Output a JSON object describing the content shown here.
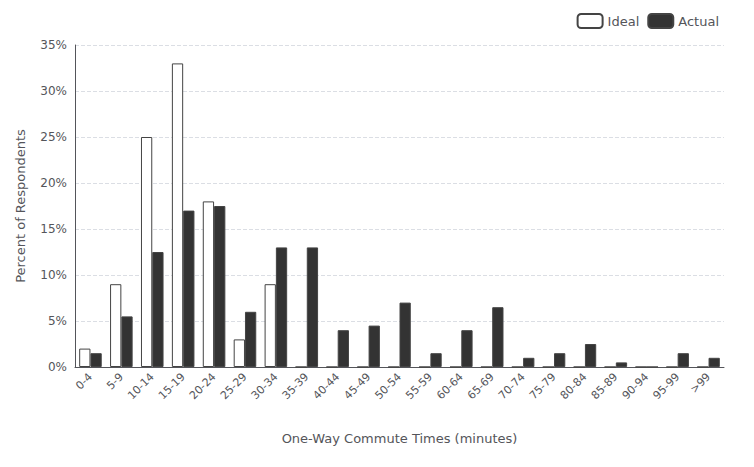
{
  "chart_data": {
    "type": "bar",
    "xlabel": "One-Way Commute Times (minutes)",
    "ylabel": "Percent of Respondents",
    "categories": [
      "0-4",
      "5-9",
      "10-14",
      "15-19",
      "20-24",
      "25-29",
      "30-34",
      "35-39",
      "40-44",
      "45-49",
      "50-54",
      "55-59",
      "60-64",
      "65-69",
      "70-74",
      "75-79",
      "80-84",
      "85-89",
      "90-94",
      "95-99",
      ">99"
    ],
    "series": [
      {
        "name": "Ideal",
        "color": "#ffffff",
        "values": [
          2,
          9,
          25,
          33,
          18,
          3,
          9,
          0,
          0,
          0,
          0,
          0,
          0,
          0,
          0,
          0,
          0,
          0,
          0,
          0,
          0
        ]
      },
      {
        "name": "Actual",
        "color": "#333333",
        "values": [
          1.5,
          5.5,
          12.5,
          17,
          17.5,
          6,
          13,
          13,
          4,
          4.5,
          7,
          1.5,
          4,
          6.5,
          1,
          1.5,
          2.5,
          0.5,
          0,
          1.5,
          1
        ]
      }
    ],
    "ylim": [
      0,
      35
    ],
    "yticks": [
      {
        "value": 0,
        "label": "0%"
      },
      {
        "value": 5,
        "label": "5%"
      },
      {
        "value": 10,
        "label": "10%"
      },
      {
        "value": 15,
        "label": "15%"
      },
      {
        "value": 20,
        "label": "20%"
      },
      {
        "value": 25,
        "label": "25%"
      },
      {
        "value": 30,
        "label": "30%"
      },
      {
        "value": 35,
        "label": "35%"
      }
    ],
    "grid": true,
    "legend": "upper right"
  }
}
